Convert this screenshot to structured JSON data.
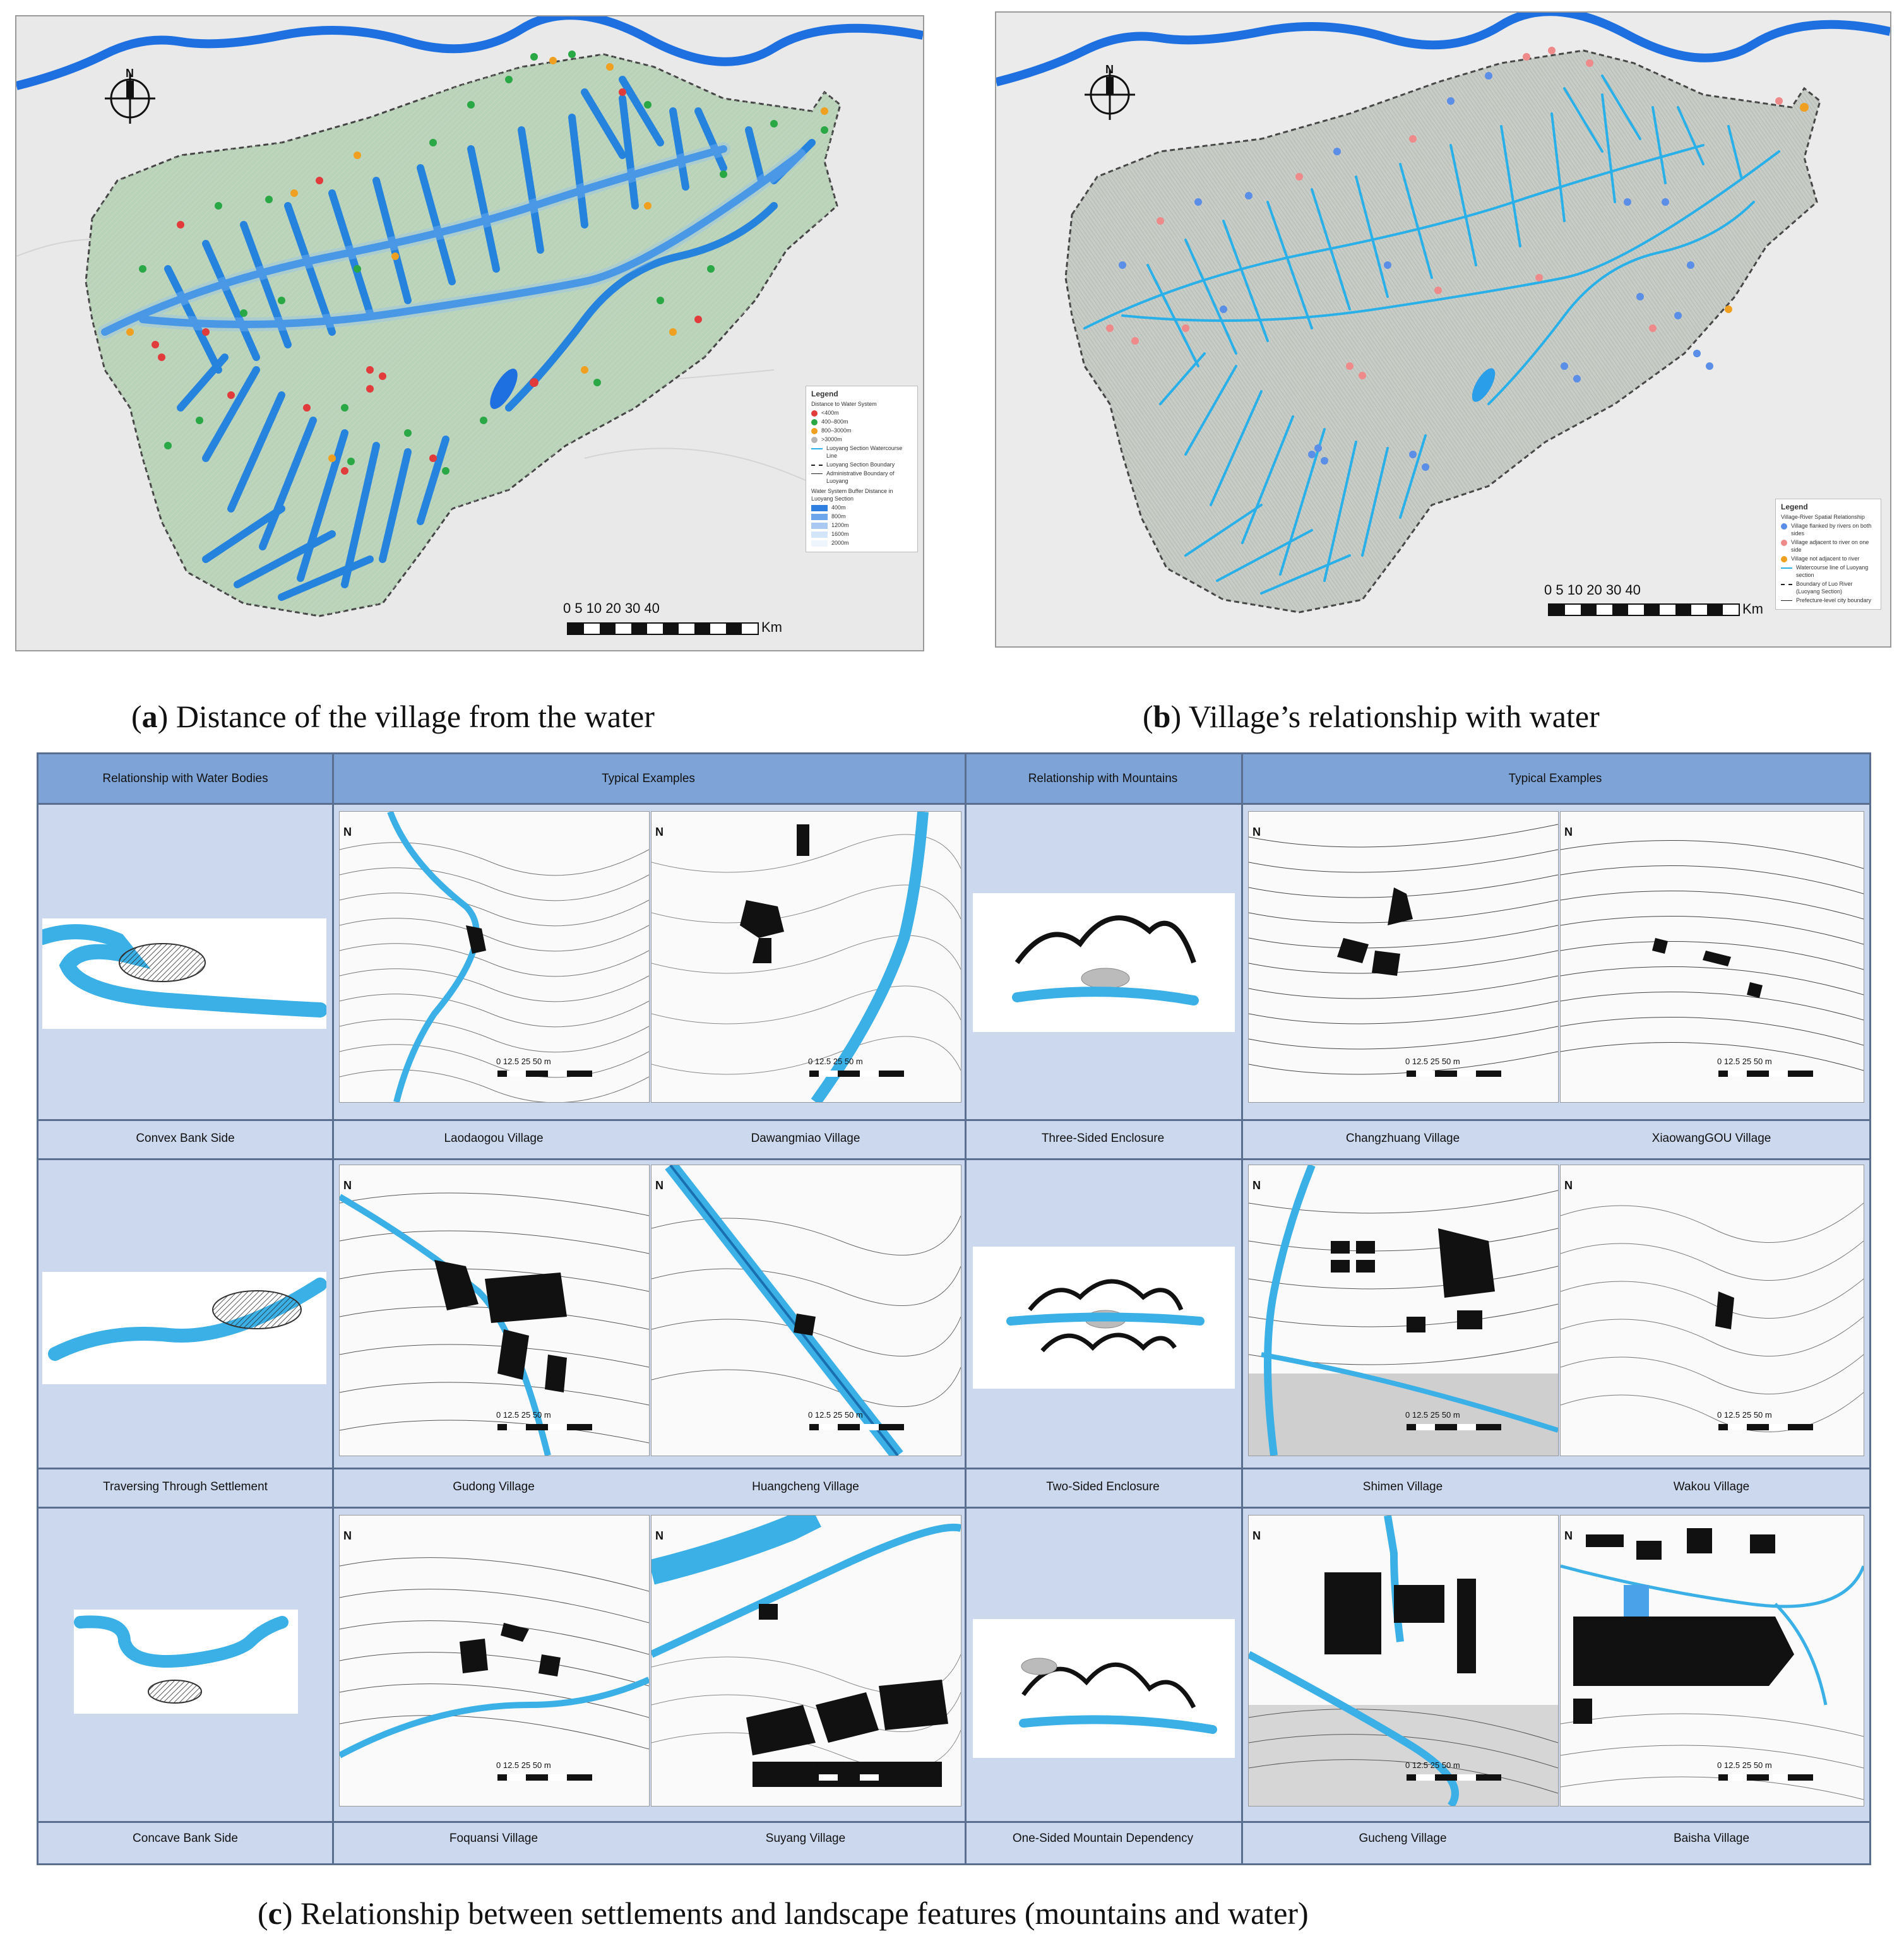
{
  "figure": {
    "panel_a": {
      "caption_letter": "a",
      "caption_text": " Distance of the village from the water",
      "north": "N",
      "legend": {
        "title": "Legend",
        "subtitle": "Distance to Water System",
        "items": [
          {
            "label": "<400m",
            "color": "#e23b3b"
          },
          {
            "label": "400–800m",
            "color": "#2aa845"
          },
          {
            "label": "800–3000m",
            "color": "#f0a020"
          },
          {
            "label": ">3000m",
            "color": "#b5b5b5"
          }
        ],
        "lines": [
          "Luoyang Section Watercourse Line",
          "Luoyang Section Boundary",
          "Administrative Boundary of Luoyang"
        ],
        "buffer_title": "Water System Buffer Distance in Luoyang Section",
        "buffers": [
          {
            "label": "400m",
            "color": "#2f7fe0"
          },
          {
            "label": "800m",
            "color": "#6ea6ec"
          },
          {
            "label": "1200m",
            "color": "#a9c9f3"
          },
          {
            "label": "1600m",
            "color": "#d3e5fa"
          },
          {
            "label": "2000m",
            "color": "#eef5fd"
          }
        ]
      },
      "scale": {
        "ticks": "0   5  10       20       30       40",
        "unit": "Km"
      }
    },
    "panel_b": {
      "caption_letter": "b",
      "caption_text": ") Village’s relationship with water",
      "north": "N",
      "legend": {
        "title": "Legend",
        "subtitle": "Village-River Spatial Relationship",
        "items": [
          {
            "label": "Village flanked by rivers on both sides",
            "color": "#5b8ee6"
          },
          {
            "label": "Village adjacent to river on one side",
            "color": "#ee8a8a"
          },
          {
            "label": "Village not adjacent to river",
            "color": "#f0a020"
          }
        ],
        "lines": [
          "Watercourse line of Luoyang section",
          "Boundary of Luo River (Luoyang Section)",
          "Prefecture-level city boundary"
        ]
      },
      "scale": {
        "ticks": "0   5  10       20       30       40",
        "unit": "Km"
      }
    },
    "panel_c": {
      "caption_letter": "c",
      "caption_text": ") Relationship between settlements and landscape features (mountains and water)",
      "headers": {
        "water": "Relationship with Water Bodies",
        "examples_left": "Typical Examples",
        "mountains": "Relationship with Mountains",
        "examples_right": "Typical Examples"
      },
      "rows": [
        {
          "water_type": "Convex Bank Side",
          "water_examples": [
            "Laodaogou Village",
            "Dawangmiao Village"
          ],
          "mountain_type": "Three-Sided Enclosure",
          "mountain_examples": [
            "Changzhuang Village",
            "XiaowangGOU Village"
          ]
        },
        {
          "water_type": "Traversing Through Settlement",
          "water_examples": [
            "Gudong Village",
            "Huangcheng Village"
          ],
          "mountain_type": "Two-Sided Enclosure",
          "mountain_examples": [
            "Shimen Village",
            "Wakou Village"
          ]
        },
        {
          "water_type": "Concave Bank Side",
          "water_examples": [
            "Foquansi Village",
            "Suyang Village"
          ],
          "mountain_type": "One-Sided Mountain Dependency",
          "mountain_examples": [
            "Gucheng Village",
            "Baisha Village"
          ]
        }
      ],
      "mini_scale": {
        "ticks": "0  12.5  25       50",
        "unit": "m",
        "north": "N"
      }
    },
    "colors": {
      "river": "#1e8fe0",
      "river_light": "#3ab0e6",
      "table_header": "#7ea3d6",
      "table_body": "#ccd8ee"
    }
  }
}
